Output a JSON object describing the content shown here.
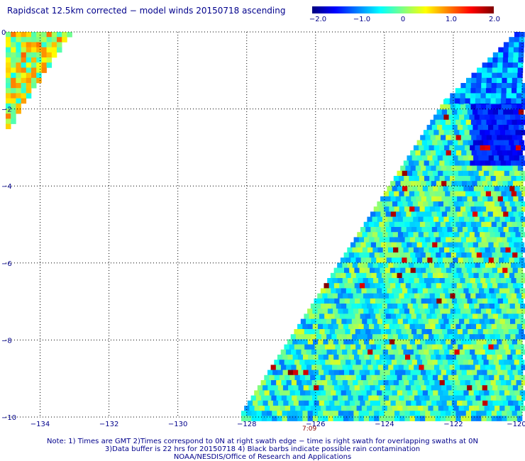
{
  "title": "Rapidscat 12.5km corrected − model winds 20150718 ascending",
  "colorbar": {
    "ticks": [
      "−2.0",
      "−1.0",
      "0",
      "1.0",
      "2.0"
    ],
    "range": [
      -2.0,
      2.0
    ],
    "colors": [
      "#00007f",
      "#0000ff",
      "#0080ff",
      "#00ffff",
      "#80ff80",
      "#ffff00",
      "#ff8000",
      "#ff0000",
      "#7f0000"
    ]
  },
  "map": {
    "lon_ticks": [
      "−134",
      "−132",
      "−130",
      "−128",
      "−126",
      "−124",
      "−122",
      "−120"
    ],
    "lat_ticks": [
      "0",
      "−2",
      "−4",
      "−6",
      "−8",
      "−10"
    ],
    "lon_range": [
      -135,
      -120
    ],
    "lat_range": [
      -10,
      0
    ],
    "swath_time": "7:09"
  },
  "notes": {
    "line1": "Note: 1) Times are GMT 2)Times correspond to 0N at right swath edge − time is right swath for overlapping swaths at 0N",
    "line2": "3)Data buffer is 22 hrs for 20150718 4) Black barbs indicate possible rain contamination",
    "line3": "NOAA/NESDIS/Office of Research and Applications"
  }
}
